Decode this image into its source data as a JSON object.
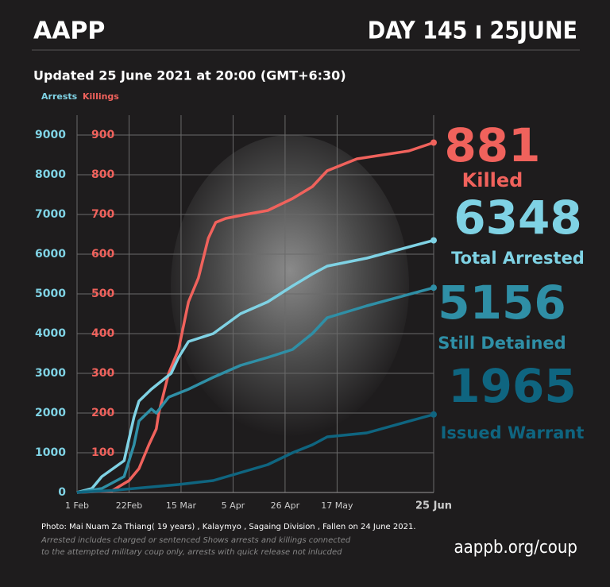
{
  "header": {
    "logo": "AAPP",
    "day": "DAY 145 ı 25JUNE",
    "updated": "Updated 25 June 2021 at 20:00 (GMT+6:30)"
  },
  "chart_data": {
    "type": "line",
    "y_label": "Arrests",
    "y2_label": "Killings",
    "xlim": [
      0,
      144
    ],
    "xticks": [
      {
        "value": 0,
        "label": "1 Feb"
      },
      {
        "value": 21,
        "label": "22Feb"
      },
      {
        "value": 42,
        "label": "15 Mar"
      },
      {
        "value": 63,
        "label": "5 Apr"
      },
      {
        "value": 84,
        "label": "26 Apr"
      },
      {
        "value": 105,
        "label": "17 May"
      },
      {
        "value": 144,
        "label": "25 Jun"
      }
    ],
    "ylim": [
      0,
      9000
    ],
    "yticks": [
      0,
      1000,
      2000,
      3000,
      4000,
      5000,
      6000,
      7000,
      8000,
      9000
    ],
    "y2lim": [
      0,
      900
    ],
    "y2ticks": [
      100,
      200,
      300,
      400,
      500,
      600,
      700,
      800,
      900
    ],
    "grid": true,
    "series": [
      {
        "name": "Killed",
        "color": "#f0625c",
        "axis": "y2",
        "x": [
          0,
          14,
          21,
          25,
          29,
          32,
          33,
          37,
          41,
          45,
          49,
          53,
          56,
          60,
          68,
          77,
          87,
          95,
          101,
          113,
          134,
          144
        ],
        "values": [
          0,
          4,
          30,
          60,
          120,
          160,
          200,
          300,
          360,
          480,
          540,
          640,
          680,
          690,
          700,
          710,
          740,
          770,
          810,
          840,
          860,
          881
        ]
      },
      {
        "name": "Total Arrested",
        "color": "#7fd2e4",
        "x": [
          0,
          6,
          10,
          19,
          23,
          25,
          30,
          38,
          41,
          45,
          55,
          66,
          77,
          87,
          95,
          101,
          117,
          144
        ],
        "values": [
          0,
          100,
          400,
          800,
          1900,
          2300,
          2600,
          3000,
          3400,
          3800,
          4000,
          4500,
          4800,
          5200,
          5500,
          5700,
          5900,
          6348
        ]
      },
      {
        "name": "Still Detained",
        "color": "#2f8fa6",
        "x": [
          0,
          10,
          19,
          23,
          25,
          30,
          32,
          37,
          45,
          55,
          66,
          77,
          87,
          95,
          101,
          117,
          144
        ],
        "values": [
          0,
          100,
          400,
          1200,
          1800,
          2100,
          2000,
          2400,
          2600,
          2900,
          3200,
          3400,
          3600,
          4000,
          4400,
          4700,
          5156
        ]
      },
      {
        "name": "Issued Warrant",
        "color": "#0f6580",
        "x": [
          0,
          14,
          23,
          41,
          55,
          66,
          77,
          87,
          95,
          101,
          117,
          144
        ],
        "values": [
          0,
          50,
          100,
          200,
          300,
          500,
          700,
          1000,
          1200,
          1400,
          1500,
          1965
        ]
      }
    ]
  },
  "footer": {
    "photo": "Photo:  Mai Nuam Za Thiang( 19 years) , Kalaymyo , Sagaing Division , Fallen on 24 June 2021.",
    "notes": [
      "Arrested includes charged or sentenced Shows arrests and killings connected",
      "to the attempted military coup only, arrests with quick release not inlucded"
    ],
    "url": "aappb.org/coup"
  }
}
